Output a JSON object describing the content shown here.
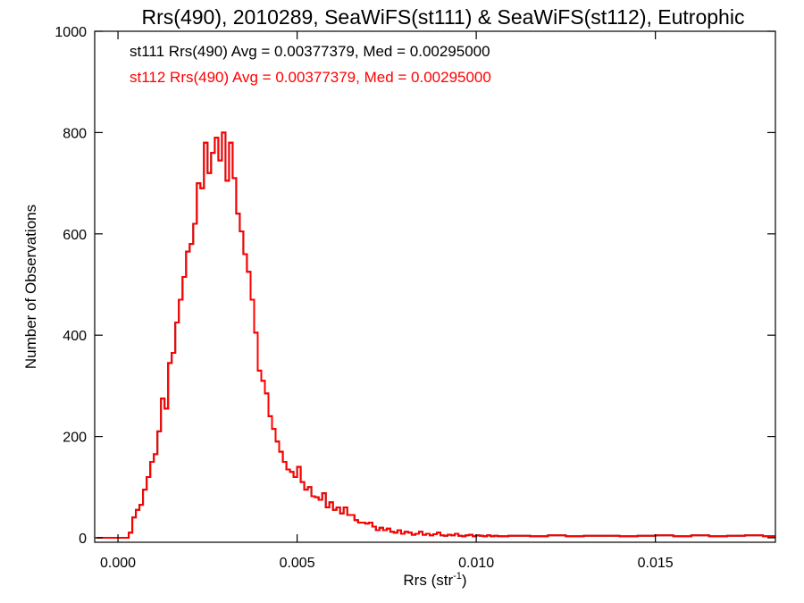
{
  "chart_data": {
    "type": "histogram",
    "title": "Rrs(490), 2010289, SeaWiFS(st111) & SeaWiFS(st112), Eutrophic",
    "xlabel": "Rrs (str",
    "xlabel_sup": "-1",
    "xlabel_close": ")",
    "ylabel": "Number of Observations",
    "xlim": [
      -0.00065,
      0.01835
    ],
    "ylim": [
      0,
      1000
    ],
    "x_ticks": [
      0.0,
      0.005,
      0.01,
      0.015
    ],
    "x_tick_labels": [
      "0.000",
      "0.005",
      "0.010",
      "0.015"
    ],
    "y_ticks": [
      0,
      200,
      400,
      600,
      800,
      1000
    ],
    "y_tick_labels": [
      "0",
      "200",
      "400",
      "600",
      "800",
      "1000"
    ],
    "annotations": [
      {
        "text": "st111 Rrs(490) Avg = 0.00377379, Med = 0.00295000",
        "color": "#000000"
      },
      {
        "text": "st112 Rrs(490) Avg = 0.00377379, Med = 0.00295000",
        "color": "#ff0000"
      }
    ],
    "series": [
      {
        "name": "st111",
        "color": "#000000",
        "x": [
          -0.0006,
          0.0003,
          0.0004,
          0.0005,
          0.0006,
          0.0007,
          0.0008,
          0.0009,
          0.001,
          0.0011,
          0.0012,
          0.0013,
          0.0014,
          0.0015,
          0.0016,
          0.0017,
          0.0018,
          0.0019,
          0.002,
          0.0021,
          0.0022,
          0.0023,
          0.0024,
          0.0025,
          0.0026,
          0.0027,
          0.0028,
          0.0029,
          0.003,
          0.0031,
          0.0032,
          0.0033,
          0.0034,
          0.0035,
          0.0036,
          0.0037,
          0.0038,
          0.0039,
          0.004,
          0.0041,
          0.0042,
          0.0043,
          0.0044,
          0.0045,
          0.0046,
          0.0047,
          0.0048,
          0.0049,
          0.005,
          0.0051,
          0.0052,
          0.0053,
          0.0054,
          0.0055,
          0.0056,
          0.0057,
          0.0058,
          0.0059,
          0.006,
          0.0061,
          0.0062,
          0.0063,
          0.0064,
          0.0065,
          0.0066,
          0.0067,
          0.0068,
          0.0069,
          0.007,
          0.0071,
          0.0072,
          0.0073,
          0.0074,
          0.0075,
          0.0076,
          0.0077,
          0.0078,
          0.0079,
          0.008,
          0.0081,
          0.0082,
          0.0083,
          0.0084,
          0.0085,
          0.0086,
          0.0087,
          0.0088,
          0.0089,
          0.009,
          0.0091,
          0.0092,
          0.0093,
          0.0094,
          0.0095,
          0.0096,
          0.0097,
          0.0098,
          0.0099,
          0.01,
          0.0101,
          0.0102,
          0.0103,
          0.0104,
          0.0105,
          0.0106,
          0.0107,
          0.0108,
          0.0109,
          0.011,
          0.0115,
          0.012,
          0.0125,
          0.013,
          0.0135,
          0.014,
          0.0145,
          0.015,
          0.0155,
          0.016,
          0.0165,
          0.017,
          0.0175,
          0.018
        ],
        "y": [
          0,
          10,
          40,
          55,
          65,
          95,
          120,
          150,
          165,
          210,
          275,
          255,
          345,
          365,
          425,
          470,
          515,
          565,
          580,
          620,
          700,
          690,
          780,
          720,
          760,
          790,
          745,
          800,
          705,
          780,
          710,
          640,
          605,
          560,
          525,
          470,
          405,
          330,
          310,
          285,
          240,
          215,
          190,
          170,
          150,
          135,
          130,
          120,
          140,
          110,
          95,
          100,
          82,
          80,
          75,
          88,
          60,
          70,
          55,
          60,
          48,
          60,
          45,
          45,
          35,
          30,
          30,
          28,
          30,
          22,
          15,
          20,
          15,
          18,
          12,
          10,
          15,
          8,
          12,
          10,
          6,
          8,
          12,
          6,
          8,
          5,
          7,
          10,
          5,
          4,
          6,
          5,
          8,
          4,
          3,
          5,
          6,
          3,
          5,
          4,
          3,
          5,
          3,
          4,
          3,
          3,
          3,
          4,
          4,
          3,
          5,
          3,
          4,
          4,
          3,
          4,
          5,
          3,
          5,
          3,
          4,
          5,
          3
        ]
      },
      {
        "name": "st112",
        "color": "#ff0000",
        "x": [
          -0.0006,
          0.0003,
          0.0004,
          0.0005,
          0.0006,
          0.0007,
          0.0008,
          0.0009,
          0.001,
          0.0011,
          0.0012,
          0.0013,
          0.0014,
          0.0015,
          0.0016,
          0.0017,
          0.0018,
          0.0019,
          0.002,
          0.0021,
          0.0022,
          0.0023,
          0.0024,
          0.0025,
          0.0026,
          0.0027,
          0.0028,
          0.0029,
          0.003,
          0.0031,
          0.0032,
          0.0033,
          0.0034,
          0.0035,
          0.0036,
          0.0037,
          0.0038,
          0.0039,
          0.004,
          0.0041,
          0.0042,
          0.0043,
          0.0044,
          0.0045,
          0.0046,
          0.0047,
          0.0048,
          0.0049,
          0.005,
          0.0051,
          0.0052,
          0.0053,
          0.0054,
          0.0055,
          0.0056,
          0.0057,
          0.0058,
          0.0059,
          0.006,
          0.0061,
          0.0062,
          0.0063,
          0.0064,
          0.0065,
          0.0066,
          0.0067,
          0.0068,
          0.0069,
          0.007,
          0.0071,
          0.0072,
          0.0073,
          0.0074,
          0.0075,
          0.0076,
          0.0077,
          0.0078,
          0.0079,
          0.008,
          0.0081,
          0.0082,
          0.0083,
          0.0084,
          0.0085,
          0.0086,
          0.0087,
          0.0088,
          0.0089,
          0.009,
          0.0091,
          0.0092,
          0.0093,
          0.0094,
          0.0095,
          0.0096,
          0.0097,
          0.0098,
          0.0099,
          0.01,
          0.0101,
          0.0102,
          0.0103,
          0.0104,
          0.0105,
          0.0106,
          0.0107,
          0.0108,
          0.0109,
          0.011,
          0.0115,
          0.012,
          0.0125,
          0.013,
          0.0135,
          0.014,
          0.0145,
          0.015,
          0.0155,
          0.016,
          0.0165,
          0.017,
          0.0175,
          0.018
        ],
        "y": [
          0,
          10,
          40,
          55,
          65,
          95,
          120,
          150,
          165,
          210,
          275,
          255,
          345,
          365,
          425,
          470,
          515,
          565,
          580,
          620,
          700,
          690,
          780,
          720,
          760,
          790,
          745,
          800,
          705,
          780,
          710,
          640,
          605,
          560,
          525,
          470,
          405,
          330,
          310,
          285,
          240,
          215,
          190,
          170,
          150,
          135,
          130,
          120,
          140,
          110,
          95,
          100,
          82,
          80,
          75,
          88,
          60,
          70,
          55,
          60,
          48,
          60,
          45,
          45,
          35,
          30,
          30,
          28,
          30,
          22,
          15,
          20,
          15,
          18,
          12,
          10,
          15,
          8,
          12,
          10,
          6,
          8,
          12,
          6,
          8,
          5,
          7,
          10,
          5,
          4,
          6,
          5,
          8,
          4,
          3,
          5,
          6,
          3,
          5,
          4,
          3,
          5,
          3,
          4,
          3,
          3,
          3,
          4,
          4,
          3,
          5,
          3,
          4,
          4,
          3,
          4,
          5,
          3,
          5,
          3,
          4,
          5,
          3
        ]
      }
    ],
    "grid": false,
    "legend": "none"
  }
}
